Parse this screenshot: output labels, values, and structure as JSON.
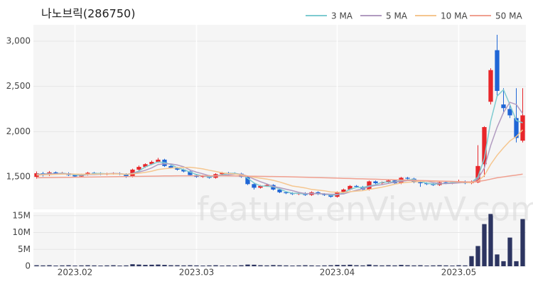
{
  "chart_data": [
    {
      "type": "candlestick",
      "title": "나노브릭(286750)",
      "watermark": "feature.enViewV.com",
      "categories": [
        null,
        null,
        null,
        null,
        null,
        null,
        "2023.02",
        null,
        null,
        null,
        null,
        null,
        null,
        null,
        null,
        null,
        null,
        null,
        null,
        null,
        null,
        null,
        null,
        null,
        null,
        "2023.03",
        null,
        null,
        null,
        null,
        null,
        null,
        null,
        null,
        null,
        null,
        null,
        null,
        null,
        null,
        null,
        null,
        null,
        null,
        null,
        null,
        null,
        "2023.04",
        null,
        null,
        null,
        null,
        null,
        null,
        null,
        null,
        null,
        null,
        null,
        null,
        null,
        null,
        null,
        null,
        null,
        null,
        "2023.05",
        null,
        null,
        null,
        null,
        null,
        null,
        null,
        null,
        null,
        null
      ],
      "open": [
        1500,
        1540,
        1520,
        1550,
        1535,
        1540,
        1520,
        1505,
        1525,
        1545,
        1540,
        1530,
        1535,
        1540,
        1530,
        1505,
        1580,
        1610,
        1640,
        1665,
        1690,
        1620,
        1600,
        1580,
        1560,
        1520,
        1500,
        1510,
        1490,
        1530,
        1545,
        1540,
        1535,
        1500,
        1420,
        1380,
        1400,
        1410,
        1360,
        1330,
        1320,
        1310,
        1320,
        1300,
        1330,
        1310,
        1300,
        1280,
        1330,
        1360,
        1400,
        1390,
        1360,
        1450,
        1430,
        1440,
        1460,
        1430,
        1490,
        1480,
        1440,
        1430,
        1420,
        1410,
        1440,
        1430,
        1440,
        1450,
        1430,
        1440,
        1640,
        2330,
        2900,
        2300,
        2250,
        2150,
        1900
      ],
      "high": [
        1560,
        1555,
        1565,
        1560,
        1555,
        1550,
        1530,
        1535,
        1555,
        1555,
        1550,
        1545,
        1550,
        1550,
        1540,
        1590,
        1625,
        1650,
        1680,
        1710,
        1700,
        1630,
        1610,
        1590,
        1570,
        1530,
        1520,
        1520,
        1540,
        1555,
        1555,
        1550,
        1545,
        1510,
        1430,
        1410,
        1420,
        1420,
        1370,
        1340,
        1330,
        1330,
        1330,
        1340,
        1340,
        1320,
        1310,
        1340,
        1370,
        1410,
        1410,
        1400,
        1460,
        1460,
        1450,
        1470,
        1470,
        1500,
        1500,
        1490,
        1450,
        1440,
        1430,
        1450,
        1450,
        1450,
        1470,
        1460,
        1460,
        1850,
        2060,
        2700,
        3070,
        2480,
        2300,
        2480,
        2480
      ],
      "low": [
        1480,
        1505,
        1510,
        1525,
        1525,
        1510,
        1495,
        1495,
        1515,
        1530,
        1520,
        1520,
        1525,
        1520,
        1490,
        1495,
        1570,
        1600,
        1630,
        1655,
        1610,
        1590,
        1570,
        1550,
        1510,
        1490,
        1490,
        1480,
        1480,
        1520,
        1530,
        1525,
        1490,
        1410,
        1360,
        1370,
        1390,
        1350,
        1320,
        1310,
        1300,
        1300,
        1290,
        1290,
        1300,
        1290,
        1270,
        1270,
        1320,
        1350,
        1380,
        1350,
        1350,
        1420,
        1420,
        1430,
        1420,
        1420,
        1470,
        1430,
        1390,
        1410,
        1400,
        1400,
        1420,
        1420,
        1430,
        1420,
        1420,
        1430,
        1500,
        2300,
        2400,
        2200,
        2150,
        1880,
        1880
      ],
      "close": [
        1540,
        1520,
        1550,
        1535,
        1540,
        1520,
        1505,
        1525,
        1545,
        1540,
        1530,
        1535,
        1540,
        1530,
        1505,
        1580,
        1610,
        1640,
        1665,
        1690,
        1620,
        1600,
        1580,
        1560,
        1520,
        1500,
        1510,
        1490,
        1530,
        1545,
        1540,
        1535,
        1500,
        1420,
        1380,
        1400,
        1410,
        1360,
        1330,
        1320,
        1310,
        1320,
        1300,
        1330,
        1310,
        1300,
        1280,
        1330,
        1360,
        1400,
        1390,
        1360,
        1450,
        1430,
        1440,
        1460,
        1430,
        1490,
        1480,
        1440,
        1430,
        1420,
        1410,
        1440,
        1430,
        1440,
        1450,
        1430,
        1440,
        1620,
        2050,
        2680,
        2450,
        2260,
        2180,
        1930,
        2180
      ],
      "up_color": "#e8262a",
      "down_color": "#1f66d6",
      "series": [
        {
          "name": "3 MA",
          "color": "#7ecbd0",
          "values": [
            1530,
            1530,
            1537,
            1535,
            1542,
            1532,
            1522,
            1517,
            1525,
            1537,
            1538,
            1535,
            1535,
            1535,
            1525,
            1538,
            1565,
            1610,
            1638,
            1665,
            1658,
            1637,
            1600,
            1580,
            1553,
            1527,
            1510,
            1500,
            1510,
            1522,
            1538,
            1540,
            1525,
            1485,
            1433,
            1400,
            1397,
            1390,
            1367,
            1337,
            1320,
            1317,
            1310,
            1317,
            1313,
            1313,
            1297,
            1303,
            1323,
            1363,
            1383,
            1383,
            1400,
            1413,
            1440,
            1443,
            1443,
            1460,
            1467,
            1470,
            1450,
            1430,
            1420,
            1423,
            1427,
            1437,
            1440,
            1440,
            1440,
            1497,
            1703,
            2117,
            2393,
            2463,
            2297,
            2123,
            2097
          ]
        },
        {
          "name": "5 MA",
          "color": "#b19bc0",
          "values": [
            1525,
            1528,
            1533,
            1535,
            1537,
            1533,
            1530,
            1525,
            1527,
            1527,
            1529,
            1535,
            1538,
            1536,
            1528,
            1538,
            1553,
            1573,
            1600,
            1637,
            1645,
            1643,
            1631,
            1611,
            1576,
            1552,
            1534,
            1512,
            1510,
            1515,
            1523,
            1530,
            1530,
            1508,
            1475,
            1447,
            1422,
            1394,
            1380,
            1364,
            1348,
            1328,
            1316,
            1316,
            1316,
            1312,
            1308,
            1308,
            1312,
            1334,
            1352,
            1368,
            1392,
            1406,
            1414,
            1428,
            1442,
            1450,
            1460,
            1460,
            1454,
            1454,
            1436,
            1429,
            1426,
            1428,
            1434,
            1438,
            1438,
            1476,
            1598,
            1848,
            2048,
            2212,
            2324,
            2300,
            2200
          ]
        },
        {
          "name": "10 MA",
          "color": "#f5c68f",
          "values": [
            1520,
            1522,
            1525,
            1528,
            1530,
            1531,
            1530,
            1529,
            1530,
            1531,
            1532,
            1532,
            1533,
            1532,
            1529,
            1533,
            1540,
            1550,
            1563,
            1581,
            1590,
            1597,
            1601,
            1604,
            1606,
            1598,
            1588,
            1573,
            1560,
            1545,
            1537,
            1532,
            1521,
            1509,
            1495,
            1485,
            1476,
            1462,
            1444,
            1422,
            1399,
            1389,
            1378,
            1361,
            1354,
            1346,
            1333,
            1330,
            1328,
            1336,
            1343,
            1348,
            1361,
            1374,
            1386,
            1402,
            1419,
            1432,
            1440,
            1445,
            1449,
            1455,
            1451,
            1452,
            1451,
            1449,
            1444,
            1439,
            1435,
            1453,
            1514,
            1638,
            1739,
            1822,
            1897,
            1946,
            2020
          ]
        },
        {
          "name": "50 MA",
          "color": "#f0a090",
          "values": [
            1490,
            1491,
            1492,
            1493,
            1494,
            1495,
            1496,
            1497,
            1498,
            1499,
            1500,
            1501,
            1502,
            1503,
            1504,
            1505,
            1506,
            1507,
            1508,
            1509,
            1510,
            1511,
            1512,
            1512,
            1512,
            1512,
            1512,
            1512,
            1512,
            1512,
            1511,
            1510,
            1509,
            1508,
            1507,
            1506,
            1505,
            1504,
            1503,
            1502,
            1500,
            1498,
            1496,
            1494,
            1492,
            1490,
            1488,
            1486,
            1484,
            1482,
            1480,
            1478,
            1476,
            1474,
            1472,
            1470,
            1468,
            1466,
            1464,
            1462,
            1460,
            1458,
            1456,
            1454,
            1452,
            1450,
            1448,
            1446,
            1445,
            1450,
            1460,
            1475,
            1490,
            1500,
            1510,
            1520,
            1530
          ]
        }
      ],
      "ylim": [
        1140,
        3180
      ],
      "yticks": [
        {
          "value": 1500,
          "label": "1,500"
        },
        {
          "value": 2000,
          "label": "2,000"
        },
        {
          "value": 2500,
          "label": "2,500"
        },
        {
          "value": 3000,
          "label": "3,000"
        }
      ],
      "grid": true
    },
    {
      "type": "bar",
      "color": "#2d3561",
      "values": [
        300000,
        250000,
        300000,
        200000,
        250000,
        300000,
        200000,
        250000,
        300000,
        250000,
        200000,
        250000,
        300000,
        200000,
        250000,
        600000,
        500000,
        400000,
        450000,
        500000,
        400000,
        300000,
        300000,
        250000,
        300000,
        250000,
        200000,
        250000,
        300000,
        200000,
        250000,
        200000,
        300000,
        500000,
        450000,
        300000,
        250000,
        350000,
        300000,
        250000,
        200000,
        250000,
        300000,
        250000,
        200000,
        250000,
        300000,
        400000,
        350000,
        450000,
        300000,
        250000,
        500000,
        300000,
        250000,
        300000,
        250000,
        400000,
        300000,
        250000,
        300000,
        200000,
        250000,
        300000,
        250000,
        200000,
        300000,
        250000,
        3000000,
        6000000,
        12500000,
        15500000,
        3500000,
        1500000,
        8500000,
        1500000,
        14000000
      ],
      "ylim": [
        0,
        16000000
      ],
      "yticks": [
        0,
        {
          "value": 5000000,
          "label": "5M"
        },
        {
          "value": 10000000,
          "label": "10M"
        },
        {
          "value": 15000000,
          "label": "15M"
        }
      ]
    }
  ]
}
